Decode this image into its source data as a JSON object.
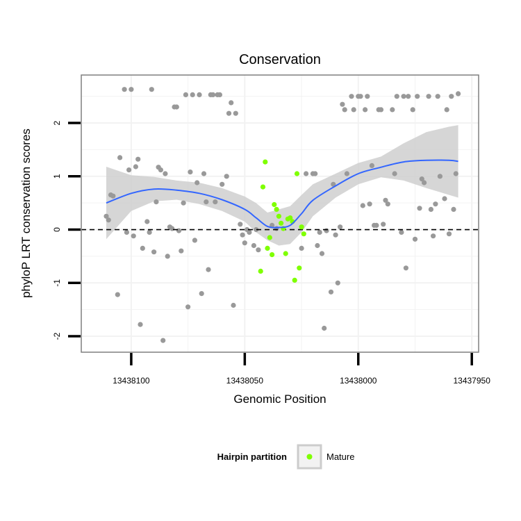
{
  "chart_data": {
    "type": "scatter",
    "title": "Conservation",
    "xlabel": "Genomic Position",
    "ylabel": "phyloP LRT conservation scores",
    "x_reversed": true,
    "xlim": [
      13438122,
      13437947
    ],
    "ylim": [
      -2.3,
      2.9
    ],
    "x_ticks": [
      13438100,
      13438050,
      13438000,
      13437950
    ],
    "x_tick_labels": [
      "13438100",
      "13438050",
      "13438000",
      "13437950"
    ],
    "y_ticks": [
      -2,
      -1,
      0,
      1,
      2
    ],
    "y_tick_labels": [
      "-2",
      "-1",
      "0",
      "1",
      "2"
    ],
    "grid": true,
    "reference_line": {
      "y": 0,
      "style": "dashed",
      "color": "#000000"
    },
    "colors": {
      "background": "#ffffff",
      "grid": "#f2f2f2",
      "other_points": "#999999",
      "mature_points": "#7fff00",
      "smooth_line": "#3366ff",
      "ribbon": "#cccccc",
      "border": "#7f7f7f"
    },
    "legend": {
      "title": "Hairpin partition",
      "placement": "bottom",
      "entries": [
        {
          "label": "Mature",
          "color": "#7fff00"
        }
      ]
    },
    "series": [
      {
        "category": "Other",
        "points": [
          [
            13438111,
            0.25
          ],
          [
            13438110,
            0.18
          ],
          [
            13438109,
            0.65
          ],
          [
            13438108,
            0.63
          ],
          [
            13438106,
            -1.22
          ],
          [
            13438105,
            1.35
          ],
          [
            13438103,
            2.63
          ],
          [
            13438102,
            -0.05
          ],
          [
            13438101,
            1.12
          ],
          [
            13438100,
            2.63
          ],
          [
            13438099,
            -0.12
          ],
          [
            13438098,
            1.18
          ],
          [
            13438097,
            1.32
          ],
          [
            13438096,
            -1.78
          ],
          [
            13438095,
            -0.35
          ],
          [
            13438093,
            0.15
          ],
          [
            13438092,
            -0.05
          ],
          [
            13438091,
            2.63
          ],
          [
            13438090,
            -0.42
          ],
          [
            13438089,
            0.52
          ],
          [
            13438088,
            1.17
          ],
          [
            13438087,
            1.12
          ],
          [
            13438086,
            -2.08
          ],
          [
            13438085,
            1.05
          ],
          [
            13438084,
            -0.5
          ],
          [
            13438083,
            0.05
          ],
          [
            13438082,
            0.02
          ],
          [
            13438081,
            2.3
          ],
          [
            13438080,
            2.3
          ],
          [
            13438079,
            -0.02
          ],
          [
            13438078,
            -0.4
          ],
          [
            13438077,
            0.5
          ],
          [
            13438076,
            2.53
          ],
          [
            13438075,
            -1.45
          ],
          [
            13438074,
            1.08
          ],
          [
            13438073,
            2.53
          ],
          [
            13438072,
            -0.2
          ],
          [
            13438071,
            0.88
          ],
          [
            13438070,
            2.53
          ],
          [
            13438069,
            -1.2
          ],
          [
            13438068,
            1.05
          ],
          [
            13438067,
            0.52
          ],
          [
            13438066,
            -0.75
          ],
          [
            13438065,
            2.53
          ],
          [
            13438064,
            2.53
          ],
          [
            13438063,
            0.52
          ],
          [
            13438062,
            2.53
          ],
          [
            13438061,
            2.53
          ],
          [
            13438060,
            0.85
          ],
          [
            13438058,
            1.0
          ],
          [
            13438057,
            2.18
          ],
          [
            13438056,
            2.38
          ],
          [
            13438055,
            -1.42
          ],
          [
            13438054,
            2.18
          ],
          [
            13438052,
            0.1
          ],
          [
            13438051,
            -0.1
          ],
          [
            13438050,
            -0.25
          ],
          [
            13438049,
            0.0
          ],
          [
            13438048,
            -0.05
          ],
          [
            13438046,
            -0.3
          ],
          [
            13438045,
            0.0
          ],
          [
            13438044,
            -0.38
          ],
          [
            13438038,
            0.08
          ],
          [
            13438036,
            0.02
          ],
          [
            13438025,
            -0.35
          ],
          [
            13438023,
            1.05
          ],
          [
            13438020,
            1.05
          ],
          [
            13438019,
            1.05
          ],
          [
            13438018,
            -0.3
          ],
          [
            13438017,
            -0.05
          ],
          [
            13438016,
            -0.45
          ],
          [
            13438015,
            -1.85
          ],
          [
            13438014,
            -0.02
          ],
          [
            13438012,
            -1.17
          ],
          [
            13438011,
            0.85
          ],
          [
            13438010,
            -0.1
          ],
          [
            13438009,
            -1.0
          ],
          [
            13438008,
            0.05
          ],
          [
            13438007,
            2.35
          ],
          [
            13438006,
            2.25
          ],
          [
            13438005,
            1.05
          ],
          [
            13438003,
            2.5
          ],
          [
            13438002,
            2.25
          ],
          [
            13438000,
            2.5
          ],
          [
            13437999,
            2.5
          ],
          [
            13437998,
            0.45
          ],
          [
            13437997,
            2.25
          ],
          [
            13437996,
            2.5
          ],
          [
            13437995,
            0.48
          ],
          [
            13437994,
            1.2
          ],
          [
            13437993,
            0.08
          ],
          [
            13437992,
            0.08
          ],
          [
            13437991,
            2.25
          ],
          [
            13437990,
            2.25
          ],
          [
            13437989,
            0.1
          ],
          [
            13437988,
            0.55
          ],
          [
            13437987,
            0.48
          ],
          [
            13437985,
            2.25
          ],
          [
            13437984,
            1.05
          ],
          [
            13437983,
            2.5
          ],
          [
            13437981,
            -0.05
          ],
          [
            13437980,
            2.5
          ],
          [
            13437979,
            -0.72
          ],
          [
            13437978,
            2.5
          ],
          [
            13437976,
            2.25
          ],
          [
            13437975,
            -0.18
          ],
          [
            13437974,
            2.5
          ],
          [
            13437973,
            0.4
          ],
          [
            13437972,
            0.95
          ],
          [
            13437971,
            0.88
          ],
          [
            13437969,
            2.5
          ],
          [
            13437968,
            0.38
          ],
          [
            13437967,
            -0.12
          ],
          [
            13437966,
            0.48
          ],
          [
            13437965,
            2.5
          ],
          [
            13437964,
            1.0
          ],
          [
            13437962,
            0.58
          ],
          [
            13437961,
            2.25
          ],
          [
            13437960,
            -0.08
          ],
          [
            13437959,
            2.5
          ],
          [
            13437958,
            0.38
          ],
          [
            13437957,
            1.05
          ],
          [
            13437956,
            2.55
          ]
        ]
      },
      {
        "category": "Mature",
        "points": [
          [
            13438043,
            -0.78
          ],
          [
            13438042,
            0.8
          ],
          [
            13438041,
            1.27
          ],
          [
            13438040,
            -0.35
          ],
          [
            13438039,
            -0.15
          ],
          [
            13438038,
            -0.47
          ],
          [
            13438037,
            0.47
          ],
          [
            13438036,
            0.38
          ],
          [
            13438035,
            0.25
          ],
          [
            13438034,
            0.12
          ],
          [
            13438033,
            0.02
          ],
          [
            13438032,
            -0.45
          ],
          [
            13438031,
            0.2
          ],
          [
            13438030,
            0.22
          ],
          [
            13438029,
            0.15
          ],
          [
            13438028,
            -0.95
          ],
          [
            13438027,
            1.05
          ],
          [
            13438026,
            -0.72
          ],
          [
            13438025,
            0.05
          ],
          [
            13438024,
            -0.08
          ]
        ]
      }
    ],
    "smooth": {
      "x": [
        13438111,
        13438100,
        13438090,
        13438080,
        13438070,
        13438060,
        13438050,
        13438045,
        13438040,
        13438035,
        13438030,
        13438025,
        13438020,
        13438010,
        13438000,
        13437990,
        13437980,
        13437970,
        13437960,
        13437956
      ],
      "y": [
        0.5,
        0.68,
        0.76,
        0.74,
        0.68,
        0.56,
        0.38,
        0.22,
        0.06,
        0.04,
        0.08,
        0.3,
        0.55,
        0.82,
        1.05,
        1.17,
        1.27,
        1.3,
        1.3,
        1.28
      ],
      "lower": [
        -0.18,
        0.35,
        0.53,
        0.56,
        0.48,
        0.35,
        0.15,
        -0.05,
        -0.2,
        -0.3,
        -0.27,
        -0.05,
        0.25,
        0.6,
        0.85,
        0.98,
        0.92,
        0.78,
        0.65,
        0.6
      ],
      "upper": [
        1.18,
        1.02,
        0.99,
        0.92,
        0.88,
        0.78,
        0.62,
        0.5,
        0.32,
        0.38,
        0.44,
        0.65,
        0.85,
        1.05,
        1.25,
        1.37,
        1.62,
        1.83,
        1.93,
        1.96
      ]
    }
  }
}
